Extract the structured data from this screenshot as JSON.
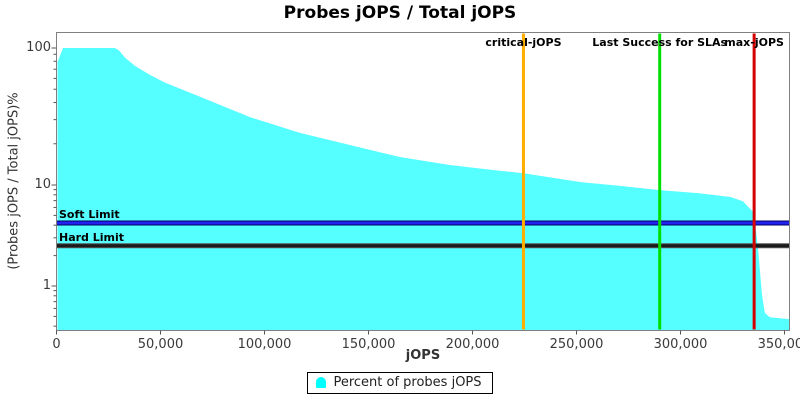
{
  "title": "Probes jOPS / Total jOPS",
  "chart_data": {
    "type": "area",
    "title": "Probes jOPS / Total jOPS",
    "xlabel": "jOPS",
    "ylabel": "(Probes jOPS / Total jOPS)%",
    "x_axis": {
      "min": 0,
      "max": 352000,
      "grid": false,
      "ticks": [
        {
          "value": 0,
          "label": "0"
        },
        {
          "value": 50000,
          "label": "50,000"
        },
        {
          "value": 100000,
          "label": "100,000"
        },
        {
          "value": 150000,
          "label": "150,000"
        },
        {
          "value": 200000,
          "label": "200,000"
        },
        {
          "value": 250000,
          "label": "250,000"
        },
        {
          "value": 300000,
          "label": "300,000"
        },
        {
          "value": 350000,
          "label": "350,000"
        }
      ]
    },
    "y_axis": {
      "scale": "log",
      "min": 0.37,
      "max": 128,
      "grid": false,
      "ticks": [
        {
          "value": 100,
          "label": "100"
        },
        {
          "value": 10,
          "label": "10"
        },
        {
          "value": 1,
          "label": "1"
        }
      ],
      "minor_ticks": [
        90,
        80,
        70,
        60,
        50,
        40,
        30,
        20,
        9,
        8,
        7,
        6,
        5,
        4,
        3,
        2,
        0.9,
        0.8,
        0.7,
        0.6,
        0.5,
        0.4
      ]
    },
    "series": [
      {
        "name": "Percent of probes jOPS",
        "color": "#55FFFF",
        "points": [
          [
            500,
            79
          ],
          [
            2800,
            97
          ],
          [
            3100,
            100
          ],
          [
            28000,
            100
          ],
          [
            30000,
            96
          ],
          [
            33000,
            85
          ],
          [
            37700,
            74
          ],
          [
            45000,
            63.5
          ],
          [
            52000,
            56
          ],
          [
            69000,
            44
          ],
          [
            93000,
            31.3
          ],
          [
            117000,
            24
          ],
          [
            141000,
            19.6
          ],
          [
            165000,
            16
          ],
          [
            189000,
            14
          ],
          [
            213000,
            12.7
          ],
          [
            224500,
            12.2
          ],
          [
            252000,
            10.5
          ],
          [
            271000,
            9.8
          ],
          [
            290000,
            8.9
          ],
          [
            309000,
            8.3
          ],
          [
            324000,
            7.6
          ],
          [
            330000,
            6.9
          ],
          [
            332500,
            6.1
          ],
          [
            335400,
            5.3
          ],
          [
            337300,
            2.3
          ],
          [
            339200,
            0.82
          ],
          [
            340600,
            0.54
          ],
          [
            343000,
            0.49
          ],
          [
            352200,
            0.47
          ]
        ]
      }
    ],
    "annotations": {
      "vlines": [
        {
          "label": "critical-jOPS",
          "x": 224500,
          "color": "#FFAE00"
        },
        {
          "label": "Last Success for SLAs",
          "x": 290000,
          "color": "#00E000"
        },
        {
          "label": "max-jOPS",
          "x": 335400,
          "color": "#D40000"
        }
      ],
      "hlines": [
        {
          "label": "Soft Limit",
          "y": 4.2,
          "color": "#2222EE",
          "edge_color": "#000066"
        },
        {
          "label": "Hard Limit",
          "y": 2.5,
          "color": "#1A1A1A",
          "edge_color": "#555555"
        }
      ]
    },
    "legend": {
      "position": "bottom",
      "items": [
        {
          "label": "Percent of probes jOPS",
          "color": "#00FFFF"
        }
      ]
    },
    "colors": {
      "plot_border": "#808080",
      "tick": "#555555",
      "background": "#FFFFFF"
    }
  }
}
